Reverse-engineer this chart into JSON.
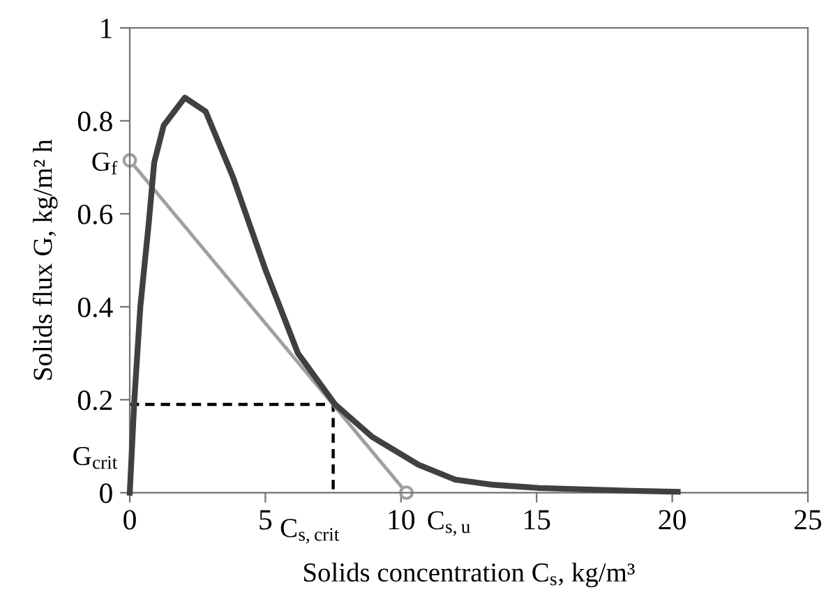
{
  "chart_data": {
    "type": "line",
    "xlabel": "Solids concentration C$_{s}$, kg/m³",
    "ylabel": "Solids flux G, kg/m² h",
    "xlim": [
      0,
      25
    ],
    "ylim": [
      0,
      1
    ],
    "xticks": [
      0,
      5,
      10,
      15,
      20,
      25
    ],
    "yticks": [
      0,
      0.2,
      0.4,
      0.6,
      0.8,
      1
    ],
    "grid": false,
    "legend": false,
    "series": [
      {
        "color": "#404040",
        "x": [
          0,
          0.17,
          0.39,
          0.7,
          0.9,
          1.25,
          2.03,
          2.8,
          3.8,
          5.0,
          6.2,
          7.57,
          8.94,
          10.65,
          12.0,
          13.4,
          15.1,
          18.5,
          20.2
        ],
        "values": [
          0,
          0.2,
          0.4,
          0.58,
          0.71,
          0.79,
          0.85,
          0.82,
          0.68,
          0.48,
          0.3,
          0.19,
          0.12,
          0.06,
          0.028,
          0.017,
          0.01,
          0.004,
          0.002
        ],
        "marker": "none",
        "line_style": "solid"
      },
      {
        "color": "#a0a0a0",
        "x": [
          0,
          10.2
        ],
        "values": [
          0.715,
          0
        ],
        "marker": "circle",
        "line_style": "solid"
      },
      {
        "color": "#000000",
        "x": [
          0,
          7.5,
          7.5
        ],
        "values": [
          0.19,
          0.19,
          0
        ],
        "marker": "none",
        "line_style": "dashed"
      }
    ],
    "annotations": [
      {
        "text": "G$_{f}$",
        "x": 0,
        "y": 0.715
      },
      {
        "text": "G$_{crit}$",
        "x": 0,
        "y": 0.19
      },
      {
        "text": "C$_{s,crit}$",
        "x": 7.5,
        "y": 0
      },
      {
        "text": "C$_{s,u}$",
        "x": 10.2,
        "y": 0
      }
    ]
  }
}
